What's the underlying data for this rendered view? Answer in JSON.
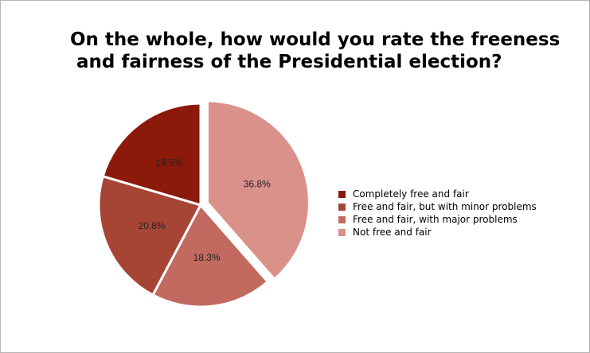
{
  "chart_data": {
    "type": "pie",
    "title_line1": "On the whole, how would you rate the freeness",
    "title_line2": " and fairness of the Presidential election?",
    "slices": [
      {
        "label": "Completely free and fair",
        "value": 19.5,
        "value_label": "19.5%",
        "color": "#8b1a0a"
      },
      {
        "label": "Free and fair, but with minor problems",
        "value": 20.8,
        "value_label": "20.8%",
        "color": "#a64536"
      },
      {
        "label": "Free and fair, with major problems",
        "value": 18.3,
        "value_label": "18.3%",
        "color": "#c26a60"
      },
      {
        "label": "Not free and fair",
        "value": 36.8,
        "value_label": "36.8%",
        "color": "#d9918a"
      }
    ],
    "legend_placement": "right"
  }
}
